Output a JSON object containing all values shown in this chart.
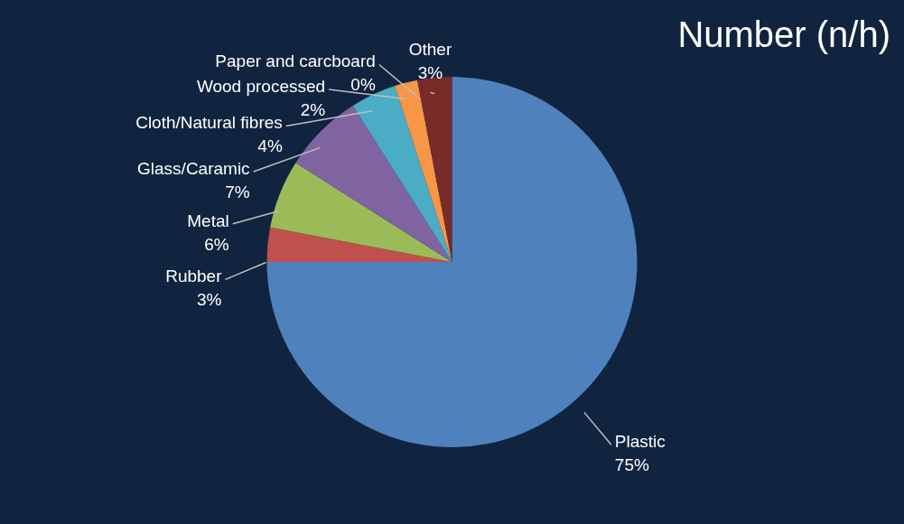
{
  "chart_data": {
    "type": "pie",
    "title": "Number (n/h)",
    "categories": [
      "Plastic",
      "Rubber",
      "Metal",
      "Glass/Caramic",
      "Cloth/Natural fibres",
      "Wood processed",
      "Paper and carcboard",
      "Other"
    ],
    "values": [
      75,
      3,
      6,
      7,
      4,
      2,
      0,
      3
    ],
    "value_labels": [
      "75%",
      "3%",
      "6%",
      "7%",
      "4%",
      "2%",
      "0%",
      "3%"
    ],
    "colors": [
      "#4f81bd",
      "#c0504d",
      "#9bbb59",
      "#8064a2",
      "#4bacc6",
      "#f79646",
      "#a5a5a5",
      "#772c2a"
    ],
    "legend": false
  }
}
